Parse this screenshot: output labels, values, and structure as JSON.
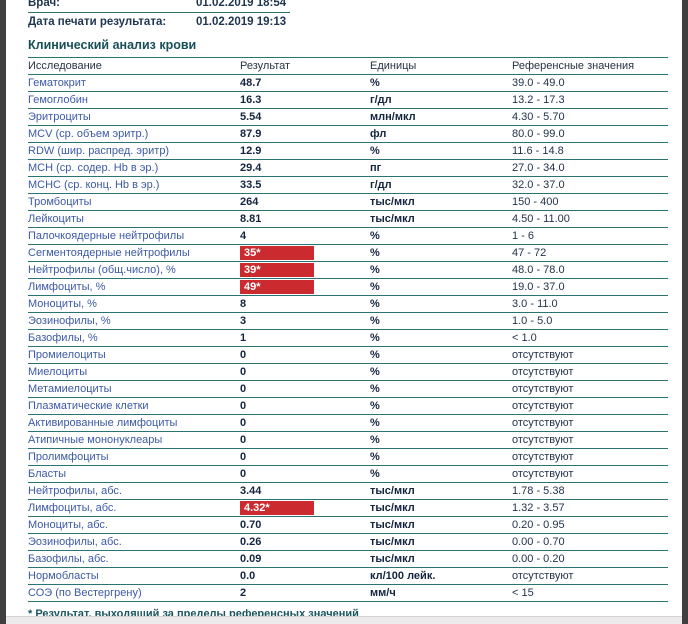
{
  "info": {
    "rows": [
      {
        "label": "Врач:",
        "value": "01.02.2019 18:54"
      },
      {
        "label": "Дата печати результата:",
        "value": "01.02.2019 19:13"
      }
    ]
  },
  "section": {
    "title": "Клинический анализ крови"
  },
  "table": {
    "headers": [
      "Исследование",
      "Результат",
      "Единицы",
      "Референсные значения"
    ],
    "rows": [
      {
        "name": "Гематокрит",
        "result": "48.7",
        "flagged": false,
        "units": "%",
        "ref": "39.0 - 49.0"
      },
      {
        "name": "Гемоглобин",
        "result": "16.3",
        "flagged": false,
        "units": "г/дл",
        "ref": "13.2 - 17.3"
      },
      {
        "name": "Эритроциты",
        "result": "5.54",
        "flagged": false,
        "units": "млн/мкл",
        "ref": "4.30 - 5.70"
      },
      {
        "name": "MCV (ср. объем эритр.)",
        "result": "87.9",
        "flagged": false,
        "units": "фл",
        "ref": "80.0 - 99.0"
      },
      {
        "name": "RDW (шир. распред. эритр)",
        "result": "12.9",
        "flagged": false,
        "units": "%",
        "ref": "11.6 - 14.8"
      },
      {
        "name": "MCH (ср. содер. Hb в эр.)",
        "result": "29.4",
        "flagged": false,
        "units": "пг",
        "ref": "27.0 - 34.0"
      },
      {
        "name": "MCHC (ср. конц. Hb в эр.)",
        "result": "33.5",
        "flagged": false,
        "units": "г/дл",
        "ref": "32.0 - 37.0"
      },
      {
        "name": "Тромбоциты",
        "result": "264",
        "flagged": false,
        "units": "тыс/мкл",
        "ref": "150 - 400"
      },
      {
        "name": "Лейкоциты",
        "result": "8.81",
        "flagged": false,
        "units": "тыс/мкл",
        "ref": "4.50 - 11.00"
      },
      {
        "name": "Палочкоядерные нейтрофилы",
        "result": "4",
        "flagged": false,
        "units": "%",
        "ref": "1 - 6"
      },
      {
        "name": "Сегментоядерные нейтрофилы",
        "result": "35*",
        "flagged": true,
        "units": "%",
        "ref": "47 - 72"
      },
      {
        "name": "Нейтрофилы (общ.число), %",
        "result": "39*",
        "flagged": true,
        "units": "%",
        "ref": "48.0 - 78.0"
      },
      {
        "name": "Лимфоциты, %",
        "result": "49*",
        "flagged": true,
        "units": "%",
        "ref": "19.0 - 37.0"
      },
      {
        "name": "Моноциты, %",
        "result": "8",
        "flagged": false,
        "units": "%",
        "ref": "3.0 - 11.0"
      },
      {
        "name": "Эозинофилы, %",
        "result": "3",
        "flagged": false,
        "units": "%",
        "ref": "1.0 - 5.0"
      },
      {
        "name": "Базофилы, %",
        "result": "1",
        "flagged": false,
        "units": "%",
        "ref": "< 1.0"
      },
      {
        "name": "Промиелоциты",
        "result": "0",
        "flagged": false,
        "units": "%",
        "ref": "отсутствуют"
      },
      {
        "name": "Миелоциты",
        "result": "0",
        "flagged": false,
        "units": "%",
        "ref": "отсутствуют"
      },
      {
        "name": "Метамиелоциты",
        "result": "0",
        "flagged": false,
        "units": "%",
        "ref": "отсутствуют"
      },
      {
        "name": "Плазматические клетки",
        "result": "0",
        "flagged": false,
        "units": "%",
        "ref": "отсутствуют"
      },
      {
        "name": "Активированные лимфоциты",
        "result": "0",
        "flagged": false,
        "units": "%",
        "ref": "отсутствуют"
      },
      {
        "name": "Атипичные мононуклеары",
        "result": "0",
        "flagged": false,
        "units": "%",
        "ref": "отсутствуют"
      },
      {
        "name": "Пролимфоциты",
        "result": "0",
        "flagged": false,
        "units": "%",
        "ref": "отсутствуют"
      },
      {
        "name": "Бласты",
        "result": "0",
        "flagged": false,
        "units": "%",
        "ref": "отсутствуют"
      },
      {
        "name": "Нейтрофилы, абс.",
        "result": "3.44",
        "flagged": false,
        "units": "тыс/мкл",
        "ref": "1.78 - 5.38"
      },
      {
        "name": "Лимфоциты, абс.",
        "result": "4.32*",
        "flagged": true,
        "units": "тыс/мкл",
        "ref": "1.32 - 3.57"
      },
      {
        "name": "Моноциты, абс.",
        "result": "0.70",
        "flagged": false,
        "units": "тыс/мкл",
        "ref": "0.20 - 0.95"
      },
      {
        "name": "Эозинофилы, абс.",
        "result": "0.26",
        "flagged": false,
        "units": "тыс/мкл",
        "ref": "0.00 - 0.70"
      },
      {
        "name": "Базофилы, абс.",
        "result": "0.09",
        "flagged": false,
        "units": "тыс/мкл",
        "ref": "0.00 - 0.20"
      },
      {
        "name": "Нормобласты",
        "result": "0.0",
        "flagged": false,
        "units": "кл/100 лейк.",
        "ref": "отсутствуют"
      },
      {
        "name": "СОЭ (по Вестергрену)",
        "result": "2",
        "flagged": false,
        "units": "мм/ч",
        "ref": "< 15"
      }
    ]
  },
  "footnote": "* Результат, выходящий за пределы референсных значений",
  "colors": {
    "line_teal": "#2A7373",
    "flag_red": "#CB2A2F",
    "label_blue": "#3B5AA5",
    "value_dark": "#14253F",
    "title_teal": "#174F58",
    "edge_gray": "#3F3F3F"
  }
}
